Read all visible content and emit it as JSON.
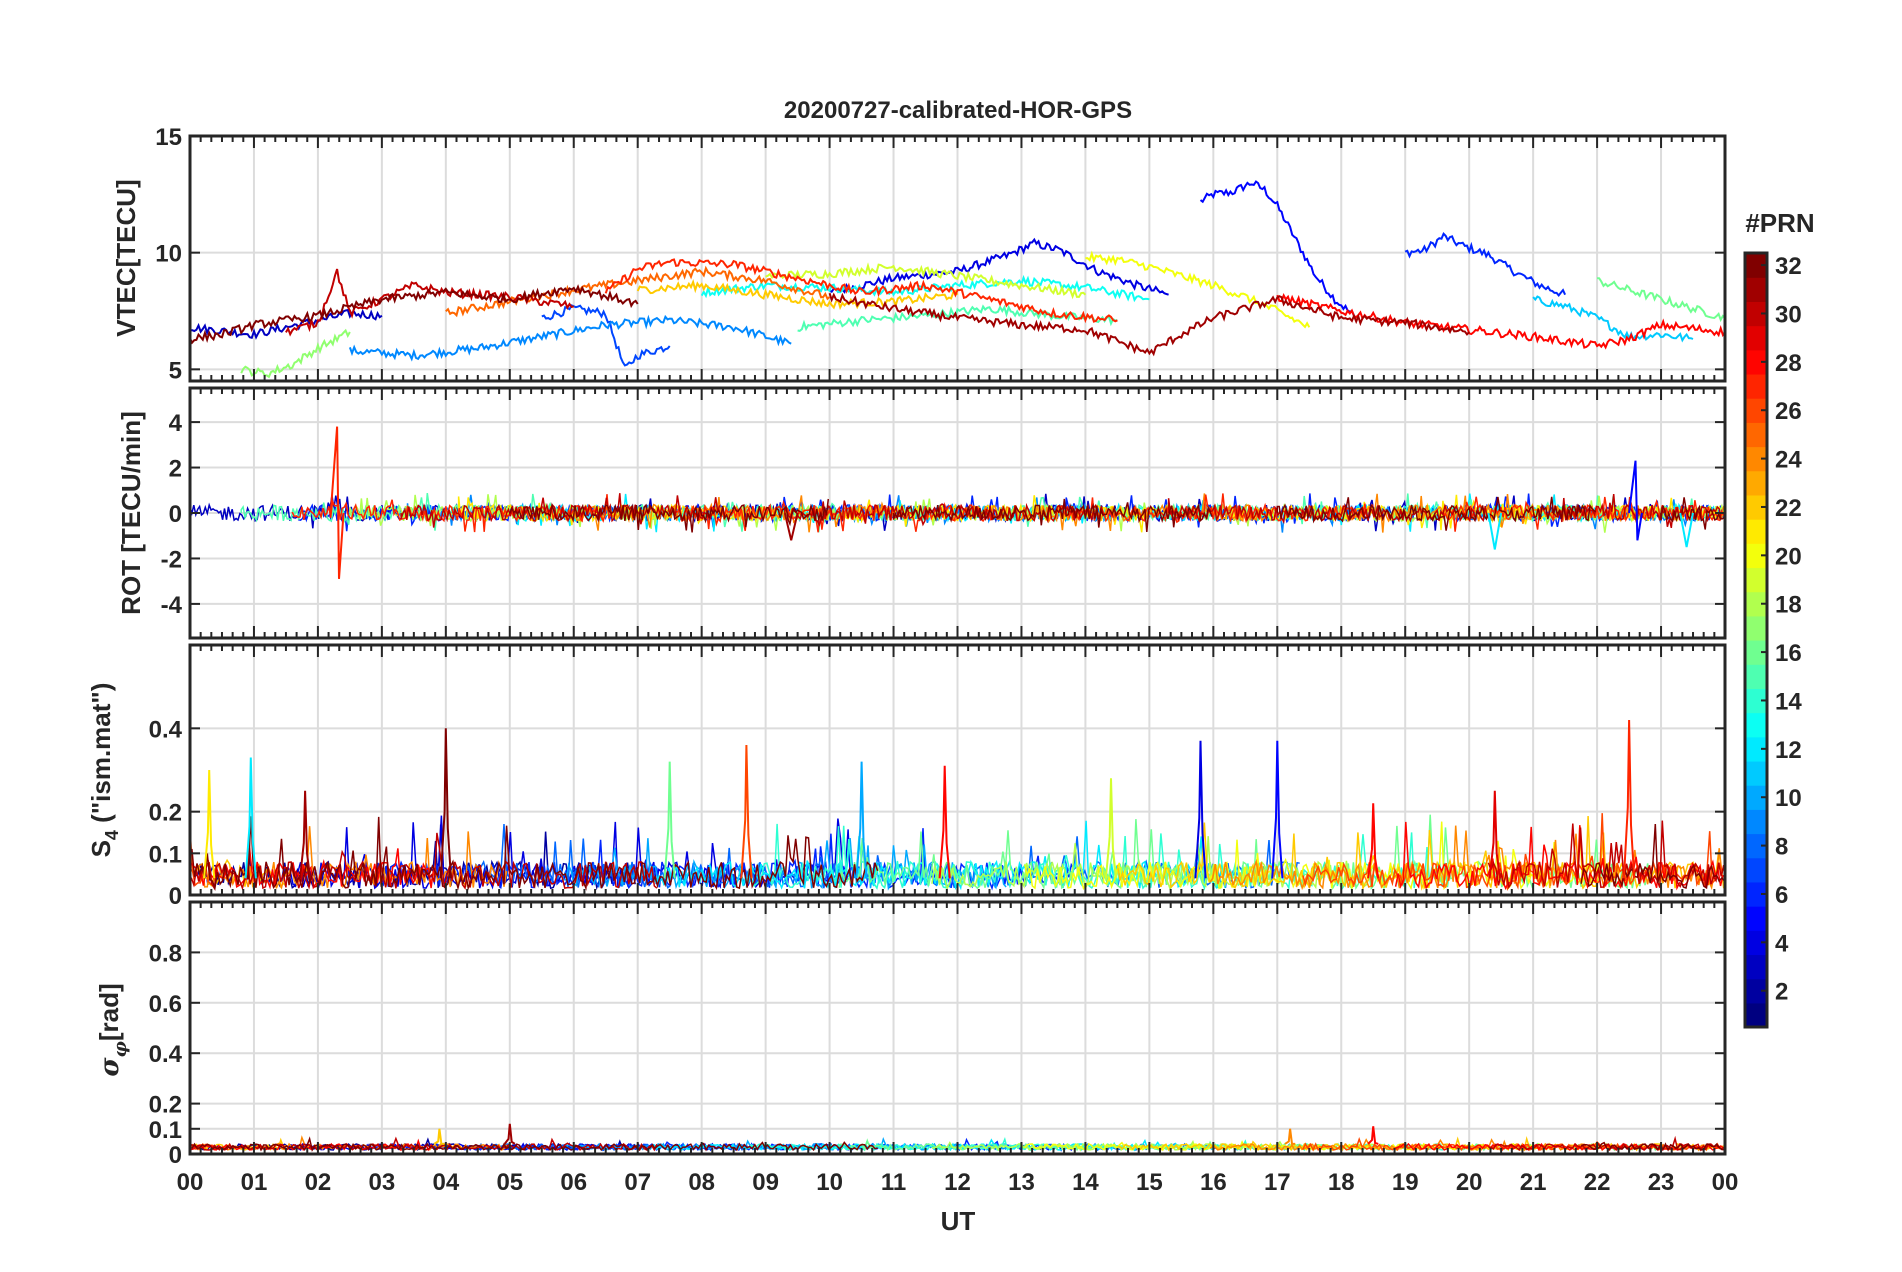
{
  "chart_data": {
    "type": "line",
    "title": "20200727-calibrated-HOR-GPS",
    "xlabel": "UT",
    "x_range_hours": [
      0,
      24
    ],
    "x_tick_labels": [
      "00",
      "01",
      "02",
      "03",
      "04",
      "05",
      "06",
      "07",
      "08",
      "09",
      "10",
      "11",
      "12",
      "13",
      "14",
      "15",
      "16",
      "17",
      "18",
      "19",
      "20",
      "21",
      "22",
      "23",
      "00"
    ],
    "grid": true,
    "colorbar": {
      "title": "#PRN",
      "range": [
        1,
        32
      ],
      "tick_labels": [
        "2",
        "4",
        "6",
        "8",
        "10",
        "12",
        "14",
        "16",
        "18",
        "20",
        "22",
        "24",
        "26",
        "28",
        "30",
        "32"
      ],
      "tick_values": [
        2,
        4,
        6,
        8,
        10,
        12,
        14,
        16,
        18,
        20,
        22,
        24,
        26,
        28,
        30,
        32
      ],
      "colormap": "jet",
      "placement": "right"
    },
    "panels": [
      {
        "id": "vtec",
        "ylabel": "VTEC[TECU]",
        "ylim": [
          4.5,
          15
        ],
        "y_ticks": [
          5,
          10,
          15
        ],
        "y_tick_labels": [
          "5",
          "10",
          "15"
        ],
        "series": [
          {
            "prn": 5,
            "points": [
              [
                15.8,
                12.2
              ],
              [
                16.0,
                12.5
              ],
              [
                16.3,
                12.6
              ],
              [
                16.6,
                13.0
              ],
              [
                16.8,
                12.7
              ],
              [
                17.0,
                12.0
              ],
              [
                17.3,
                10.5
              ],
              [
                17.6,
                9.0
              ],
              [
                17.9,
                8.0
              ],
              [
                18.2,
                7.3
              ]
            ]
          },
          {
            "prn": 6,
            "points": [
              [
                19.0,
                10.0
              ],
              [
                19.3,
                10.1
              ],
              [
                19.6,
                10.7
              ],
              [
                19.9,
                10.3
              ],
              [
                20.3,
                9.9
              ],
              [
                20.7,
                9.2
              ],
              [
                21.1,
                8.6
              ],
              [
                21.5,
                8.2
              ]
            ]
          },
          {
            "prn": 4,
            "points": [
              [
                10.0,
                8.3
              ],
              [
                11.0,
                8.9
              ],
              [
                12.0,
                9.2
              ],
              [
                12.8,
                9.9
              ],
              [
                13.2,
                10.4
              ],
              [
                13.6,
                10.1
              ],
              [
                14.2,
                9.2
              ],
              [
                14.8,
                8.6
              ],
              [
                15.3,
                8.2
              ]
            ]
          },
          {
            "prn": 7,
            "points": [
              [
                5.5,
                7.2
              ],
              [
                6.0,
                7.6
              ],
              [
                6.5,
                7.4
              ],
              [
                6.8,
                5.0
              ],
              [
                7.0,
                5.6
              ],
              [
                7.5,
                6.0
              ]
            ]
          },
          {
            "prn": 3,
            "points": [
              [
                0.0,
                6.8
              ],
              [
                1.0,
                6.5
              ],
              [
                1.5,
                6.8
              ],
              [
                2.0,
                7.1
              ],
              [
                2.5,
                7.4
              ],
              [
                3.0,
                7.3
              ]
            ]
          },
          {
            "prn": 9,
            "points": [
              [
                2.5,
                5.8
              ],
              [
                3.5,
                5.6
              ],
              [
                4.5,
                5.9
              ],
              [
                5.5,
                6.4
              ],
              [
                6.5,
                6.9
              ],
              [
                7.5,
                7.1
              ],
              [
                8.5,
                6.8
              ],
              [
                9.4,
                6.1
              ]
            ]
          },
          {
            "prn": 11,
            "points": [
              [
                21.0,
                8.0
              ],
              [
                21.5,
                7.7
              ],
              [
                22.0,
                7.2
              ],
              [
                22.5,
                6.4
              ],
              [
                23.0,
                6.5
              ],
              [
                23.5,
                6.3
              ]
            ]
          },
          {
            "prn": 13,
            "points": [
              [
                8.0,
                8.3
              ],
              [
                9.0,
                8.6
              ],
              [
                10.0,
                8.5
              ],
              [
                11.0,
                8.3
              ],
              [
                12.0,
                8.6
              ],
              [
                13.0,
                8.8
              ],
              [
                14.0,
                8.5
              ],
              [
                15.0,
                8.0
              ]
            ]
          },
          {
            "prn": 15,
            "points": [
              [
                9.5,
                6.8
              ],
              [
                10.5,
                7.1
              ],
              [
                11.5,
                7.3
              ],
              [
                12.5,
                7.6
              ],
              [
                13.5,
                7.3
              ],
              [
                14.5,
                7.1
              ]
            ]
          },
          {
            "prn": 16,
            "points": [
              [
                22.0,
                8.8
              ],
              [
                22.5,
                8.4
              ],
              [
                23.0,
                8.0
              ],
              [
                23.5,
                7.6
              ],
              [
                24.0,
                7.2
              ]
            ]
          },
          {
            "prn": 17,
            "points": [
              [
                0.8,
                5.0
              ],
              [
                1.2,
                4.8
              ],
              [
                1.6,
                5.2
              ],
              [
                2.0,
                5.9
              ],
              [
                2.5,
                6.6
              ]
            ]
          },
          {
            "prn": 19,
            "points": [
              [
                9.0,
                9.0
              ],
              [
                10.0,
                9.1
              ],
              [
                11.0,
                9.4
              ],
              [
                12.0,
                9.0
              ],
              [
                13.0,
                8.6
              ],
              [
                14.0,
                8.2
              ]
            ]
          },
          {
            "prn": 20,
            "points": [
              [
                14.0,
                9.8
              ],
              [
                14.5,
                9.7
              ],
              [
                15.0,
                9.4
              ],
              [
                15.5,
                9.0
              ],
              [
                16.0,
                8.6
              ],
              [
                16.5,
                8.1
              ],
              [
                17.0,
                7.5
              ],
              [
                17.5,
                6.8
              ]
            ]
          },
          {
            "prn": 22,
            "points": [
              [
                7.0,
                8.4
              ],
              [
                8.0,
                8.6
              ],
              [
                9.0,
                8.2
              ],
              [
                10.0,
                7.8
              ],
              [
                11.0,
                7.9
              ],
              [
                12.0,
                8.2
              ]
            ]
          },
          {
            "prn": 25,
            "points": [
              [
                4.0,
                7.4
              ],
              [
                5.0,
                7.9
              ],
              [
                6.0,
                8.4
              ],
              [
                7.0,
                8.8
              ],
              [
                8.0,
                9.2
              ],
              [
                9.0,
                8.8
              ],
              [
                10.0,
                8.1
              ]
            ]
          },
          {
            "prn": 27,
            "points": [
              [
                6.5,
                8.3
              ],
              [
                7.0,
                9.3
              ],
              [
                7.5,
                9.6
              ],
              [
                8.5,
                9.5
              ],
              [
                9.5,
                8.9
              ],
              [
                10.5,
                8.3
              ],
              [
                11.5,
                8.6
              ],
              [
                12.5,
                8.0
              ],
              [
                13.5,
                7.4
              ],
              [
                14.5,
                7.1
              ]
            ]
          },
          {
            "prn": 28,
            "points": [
              [
                17.0,
                8.1
              ],
              [
                18.0,
                7.5
              ],
              [
                19.0,
                7.0
              ],
              [
                20.0,
                6.7
              ],
              [
                21.0,
                6.4
              ],
              [
                22.0,
                6.0
              ],
              [
                22.5,
                6.3
              ],
              [
                23.0,
                6.9
              ],
              [
                24.0,
                6.6
              ]
            ]
          },
          {
            "prn": 30,
            "points": [
              [
                1.5,
                6.6
              ],
              [
                2.0,
                7.0
              ],
              [
                2.3,
                9.2
              ],
              [
                2.5,
                7.4
              ],
              [
                3.0,
                8.0
              ],
              [
                3.5,
                8.6
              ],
              [
                4.0,
                8.3
              ],
              [
                5.0,
                8.1
              ],
              [
                6.0,
                7.7
              ]
            ]
          },
          {
            "prn": 31,
            "points": [
              [
                10.0,
                8.1
              ],
              [
                11.0,
                7.6
              ],
              [
                12.0,
                7.2
              ],
              [
                13.0,
                6.9
              ],
              [
                14.0,
                6.7
              ],
              [
                15.0,
                5.7
              ],
              [
                15.5,
                6.5
              ],
              [
                16.0,
                7.2
              ],
              [
                17.0,
                8.0
              ],
              [
                18.0,
                7.2
              ],
              [
                19.0,
                7.0
              ],
              [
                20.0,
                6.6
              ]
            ]
          },
          {
            "prn": 32,
            "points": [
              [
                0.0,
                6.3
              ],
              [
                0.5,
                6.5
              ],
              [
                1.0,
                6.9
              ],
              [
                2.0,
                7.3
              ],
              [
                3.0,
                8.0
              ],
              [
                4.0,
                8.3
              ],
              [
                5.0,
                8.0
              ],
              [
                6.0,
                8.5
              ],
              [
                7.0,
                7.8
              ]
            ]
          }
        ]
      },
      {
        "id": "rot",
        "ylabel": "ROT [TECU/min]",
        "ylim": [
          -5.5,
          5.5
        ],
        "y_ticks": [
          -4,
          -2,
          0,
          2,
          4
        ],
        "y_tick_labels": [
          "-4",
          "-2",
          "0",
          "2",
          "4"
        ],
        "typical_amplitude": 0.35,
        "spikes": [
          {
            "prn": 27,
            "x": 2.3,
            "values": [
              3.8,
              -2.9
            ]
          },
          {
            "prn": 5,
            "x": 22.6,
            "values": [
              2.3,
              -1.2
            ]
          },
          {
            "prn": 12,
            "x": 23.4,
            "values": [
              -1.5
            ]
          },
          {
            "prn": 12,
            "x": 20.4,
            "values": [
              -1.6
            ]
          },
          {
            "prn": 31,
            "x": 9.4,
            "values": [
              -1.2
            ]
          }
        ]
      },
      {
        "id": "s4",
        "ylabel_base": "S",
        "ylabel_sub": "4",
        "ylabel_rest": " (\"ism.mat\")",
        "ylim": [
          0,
          0.6
        ],
        "y_ticks": [
          0,
          0.1,
          0.2,
          0.4
        ],
        "y_tick_labels": [
          "0",
          "0.1",
          "0.2",
          "0.4"
        ],
        "typical_level": 0.04,
        "peaks": [
          {
            "prn": 32,
            "x": 4.0,
            "value": 0.4
          },
          {
            "prn": 27,
            "x": 22.5,
            "value": 0.42
          },
          {
            "prn": 4,
            "x": 15.8,
            "value": 0.37
          },
          {
            "prn": 5,
            "x": 17.0,
            "value": 0.37
          },
          {
            "prn": 26,
            "x": 8.7,
            "value": 0.36
          },
          {
            "prn": 16,
            "x": 7.5,
            "value": 0.32
          },
          {
            "prn": 28,
            "x": 11.8,
            "value": 0.31
          },
          {
            "prn": 12,
            "x": 0.95,
            "value": 0.33
          },
          {
            "prn": 21,
            "x": 0.3,
            "value": 0.3
          },
          {
            "prn": 31,
            "x": 1.8,
            "value": 0.25
          },
          {
            "prn": 28,
            "x": 18.5,
            "value": 0.22
          },
          {
            "prn": 29,
            "x": 20.4,
            "value": 0.25
          },
          {
            "prn": 19,
            "x": 14.4,
            "value": 0.28
          },
          {
            "prn": 10,
            "x": 10.5,
            "value": 0.32
          }
        ]
      },
      {
        "id": "sigma_phi",
        "ylabel_base": "σ",
        "ylabel_sub": "φ",
        "ylabel_rest": "[rad]",
        "ylim": [
          0,
          1
        ],
        "y_ticks": [
          0,
          0.1,
          0.2,
          0.4,
          0.6,
          0.8
        ],
        "y_tick_labels": [
          "0",
          "0.1",
          "0.2",
          "0.4",
          "0.6",
          "0.8"
        ],
        "typical_level": 0.04,
        "peaks": [
          {
            "prn": 31,
            "x": 5.0,
            "value": 0.12
          },
          {
            "prn": 22,
            "x": 3.9,
            "value": 0.1
          },
          {
            "prn": 28,
            "x": 18.5,
            "value": 0.11
          },
          {
            "prn": 24,
            "x": 17.2,
            "value": 0.1
          }
        ]
      }
    ]
  }
}
